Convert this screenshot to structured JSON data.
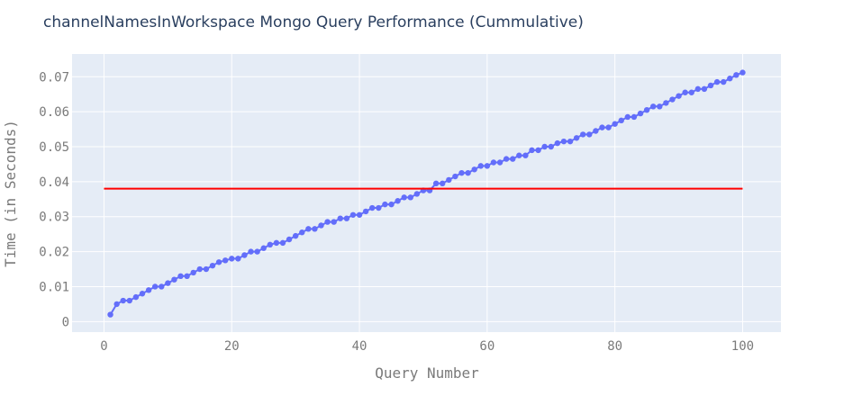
{
  "chart_data": {
    "type": "line",
    "title": "channelNamesInWorkspace Mongo Query Performance (Cummulative)",
    "xlabel": "Query Number",
    "ylabel": "Time (in Seconds)",
    "xlim": [
      -5,
      106
    ],
    "ylim": [
      -0.003,
      0.0765
    ],
    "x_ticks": [
      0,
      20,
      40,
      60,
      80,
      100
    ],
    "x_tick_labels": [
      "0",
      "20",
      "40",
      "60",
      "80",
      "100"
    ],
    "y_ticks": [
      0,
      0.01,
      0.02,
      0.03,
      0.04,
      0.05,
      0.06,
      0.07
    ],
    "y_tick_labels": [
      "0",
      "0.01",
      "0.02",
      "0.03",
      "0.04",
      "0.05",
      "0.06",
      "0.07"
    ],
    "grid": true,
    "background": "#e5ecf6",
    "series": [
      {
        "type": "line+markers",
        "color": "#636efa",
        "x": [
          1,
          2,
          3,
          4,
          5,
          6,
          7,
          8,
          9,
          10,
          11,
          12,
          13,
          14,
          15,
          16,
          17,
          18,
          19,
          20,
          21,
          22,
          23,
          24,
          25,
          26,
          27,
          28,
          29,
          30,
          31,
          32,
          33,
          34,
          35,
          36,
          37,
          38,
          39,
          40,
          41,
          42,
          43,
          44,
          45,
          46,
          47,
          48,
          49,
          50,
          51,
          52,
          53,
          54,
          55,
          56,
          57,
          58,
          59,
          60,
          61,
          62,
          63,
          64,
          65,
          66,
          67,
          68,
          69,
          70,
          71,
          72,
          73,
          74,
          75,
          76,
          77,
          78,
          79,
          80,
          81,
          82,
          83,
          84,
          85,
          86,
          87,
          88,
          89,
          90,
          91,
          92,
          93,
          94,
          95,
          96,
          97,
          98,
          99,
          100
        ],
        "y": [
          0.002,
          0.005,
          0.006,
          0.006,
          0.007,
          0.008,
          0.009,
          0.01,
          0.01,
          0.011,
          0.012,
          0.013,
          0.013,
          0.014,
          0.015,
          0.015,
          0.016,
          0.017,
          0.0175,
          0.018,
          0.018,
          0.019,
          0.02,
          0.02,
          0.021,
          0.022,
          0.0225,
          0.0225,
          0.0235,
          0.0245,
          0.0255,
          0.0265,
          0.0265,
          0.0275,
          0.0285,
          0.0285,
          0.0295,
          0.0295,
          0.0305,
          0.0305,
          0.0315,
          0.0325,
          0.0325,
          0.0335,
          0.0335,
          0.0345,
          0.0355,
          0.0355,
          0.0365,
          0.0375,
          0.0375,
          0.0395,
          0.0395,
          0.0405,
          0.0415,
          0.0425,
          0.0425,
          0.0435,
          0.0445,
          0.0445,
          0.0455,
          0.0455,
          0.0465,
          0.0465,
          0.0475,
          0.0475,
          0.049,
          0.049,
          0.05,
          0.05,
          0.051,
          0.0515,
          0.0515,
          0.0525,
          0.0535,
          0.0535,
          0.0545,
          0.0555,
          0.0555,
          0.0565,
          0.0575,
          0.0585,
          0.0585,
          0.0595,
          0.0605,
          0.0615,
          0.0615,
          0.0625,
          0.0635,
          0.0645,
          0.0655,
          0.0655,
          0.0665,
          0.0665,
          0.0675,
          0.0685,
          0.0685,
          0.0695,
          0.0705,
          0.0712
        ]
      },
      {
        "type": "line",
        "color": "#ff0000",
        "x": [
          0,
          100
        ],
        "y": [
          0.038,
          0.038
        ]
      }
    ]
  }
}
